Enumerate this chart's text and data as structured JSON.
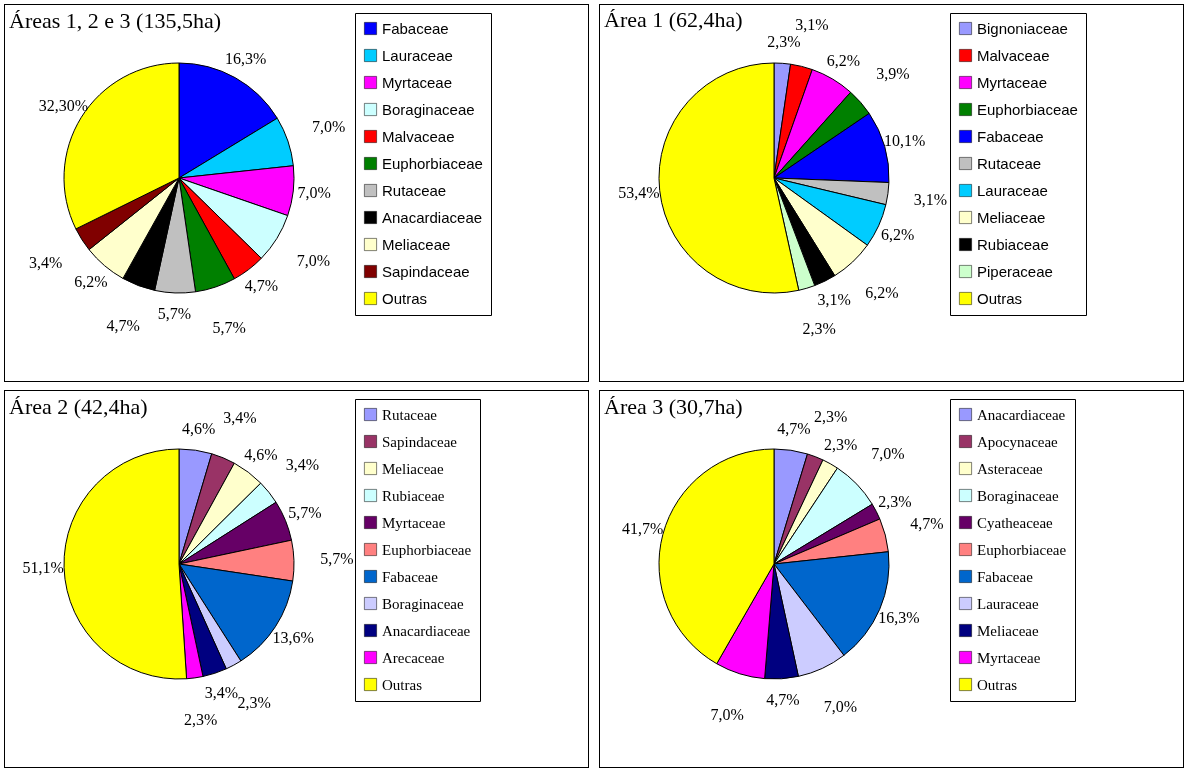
{
  "chart_data": [
    {
      "type": "pie",
      "title": "Áreas 1, 2 e 3 (135,5ha)",
      "legend": "right",
      "categories": [
        "Fabaceae",
        "Lauraceae",
        "Myrtaceae",
        "Boraginaceae",
        "Malvaceae",
        "Euphorbiaceae",
        "Rutaceae",
        "Anacardiaceae",
        "Meliaceae",
        "Sapindaceae",
        "Outras"
      ],
      "values": [
        16.3,
        7.0,
        7.0,
        7.0,
        4.7,
        5.7,
        5.7,
        4.7,
        6.2,
        3.4,
        32.3
      ],
      "value_labels": [
        "16,3%",
        "7,0%",
        "7,0%",
        "7,0%",
        "4,7%",
        "5,7%",
        "5,7%",
        "4,7%",
        "6,2%",
        "3,4%",
        "32,30%"
      ],
      "colors": [
        "#0000ff",
        "#00ccff",
        "#ff00ff",
        "#ccffff",
        "#ff0000",
        "#008000",
        "#c0c0c0",
        "#000000",
        "#ffffcc",
        "#800000",
        "#ffff00"
      ]
    },
    {
      "type": "pie",
      "title": "Área 1 (62,4ha)",
      "legend": "right",
      "categories": [
        "Bignoniaceae",
        "Malvaceae",
        "Myrtaceae",
        "Euphorbiaceae",
        "Fabaceae",
        "Rutaceae",
        "Lauraceae",
        "Meliaceae",
        "Rubiaceae",
        "Piperaceae",
        "Outras"
      ],
      "values": [
        2.3,
        3.1,
        6.2,
        3.9,
        10.1,
        3.1,
        6.2,
        6.2,
        3.1,
        2.3,
        53.4
      ],
      "value_labels": [
        "2,3%",
        "3,1%",
        "6,2%",
        "3,9%",
        "10,1%",
        "3,1%",
        "6,2%",
        "6,2%",
        "3,1%",
        "2,3%",
        "53,4%"
      ],
      "colors": [
        "#9999ff",
        "#ff0000",
        "#ff00ff",
        "#008000",
        "#0000ff",
        "#c0c0c0",
        "#00ccff",
        "#ffffcc",
        "#000000",
        "#ccffcc",
        "#ffff00"
      ]
    },
    {
      "type": "pie",
      "title": "Área 2 (42,4ha)",
      "legend": "right",
      "categories": [
        "Rutaceae",
        "Sapindaceae",
        "Meliaceae",
        "Rubiaceae",
        "Myrtaceae",
        "Euphorbiaceae",
        "Fabaceae",
        "Boraginaceae",
        "Anacardiaceae",
        "Arecaceae",
        "Outras"
      ],
      "values": [
        4.6,
        3.4,
        4.6,
        3.4,
        5.7,
        5.7,
        13.6,
        2.3,
        3.4,
        2.3,
        51.1
      ],
      "value_labels": [
        "4,6%",
        "3,4%",
        "4,6%",
        "3,4%",
        "5,7%",
        "5,7%",
        "13,6%",
        "2,3%",
        "3,4%",
        "2,3%",
        "51,1%"
      ],
      "colors": [
        "#9999ff",
        "#993366",
        "#ffffcc",
        "#ccffff",
        "#660066",
        "#ff8080",
        "#0066cc",
        "#ccccff",
        "#000080",
        "#ff00ff",
        "#ffff00"
      ]
    },
    {
      "type": "pie",
      "title": "Área 3 (30,7ha)",
      "legend": "right",
      "categories": [
        "Anacardiaceae",
        "Apocynaceae",
        "Asteraceae",
        "Boraginaceae",
        "Cyatheaceae",
        "Euphorbiaceae",
        "Fabaceae",
        "Lauraceae",
        "Meliaceae",
        "Myrtaceae",
        "Outras"
      ],
      "values": [
        4.7,
        2.3,
        2.3,
        7.0,
        2.3,
        4.7,
        16.3,
        7.0,
        4.7,
        7.0,
        41.7
      ],
      "value_labels": [
        "4,7%",
        "2,3%",
        "2,3%",
        "7,0%",
        "2,3%",
        "4,7%",
        "16,3%",
        "7,0%",
        "4,7%",
        "7,0%",
        "41,7%"
      ],
      "colors": [
        "#9999ff",
        "#993366",
        "#ffffcc",
        "#ccffff",
        "#660066",
        "#ff8080",
        "#0066cc",
        "#ccccff",
        "#000080",
        "#ff00ff",
        "#ffff00"
      ]
    }
  ]
}
